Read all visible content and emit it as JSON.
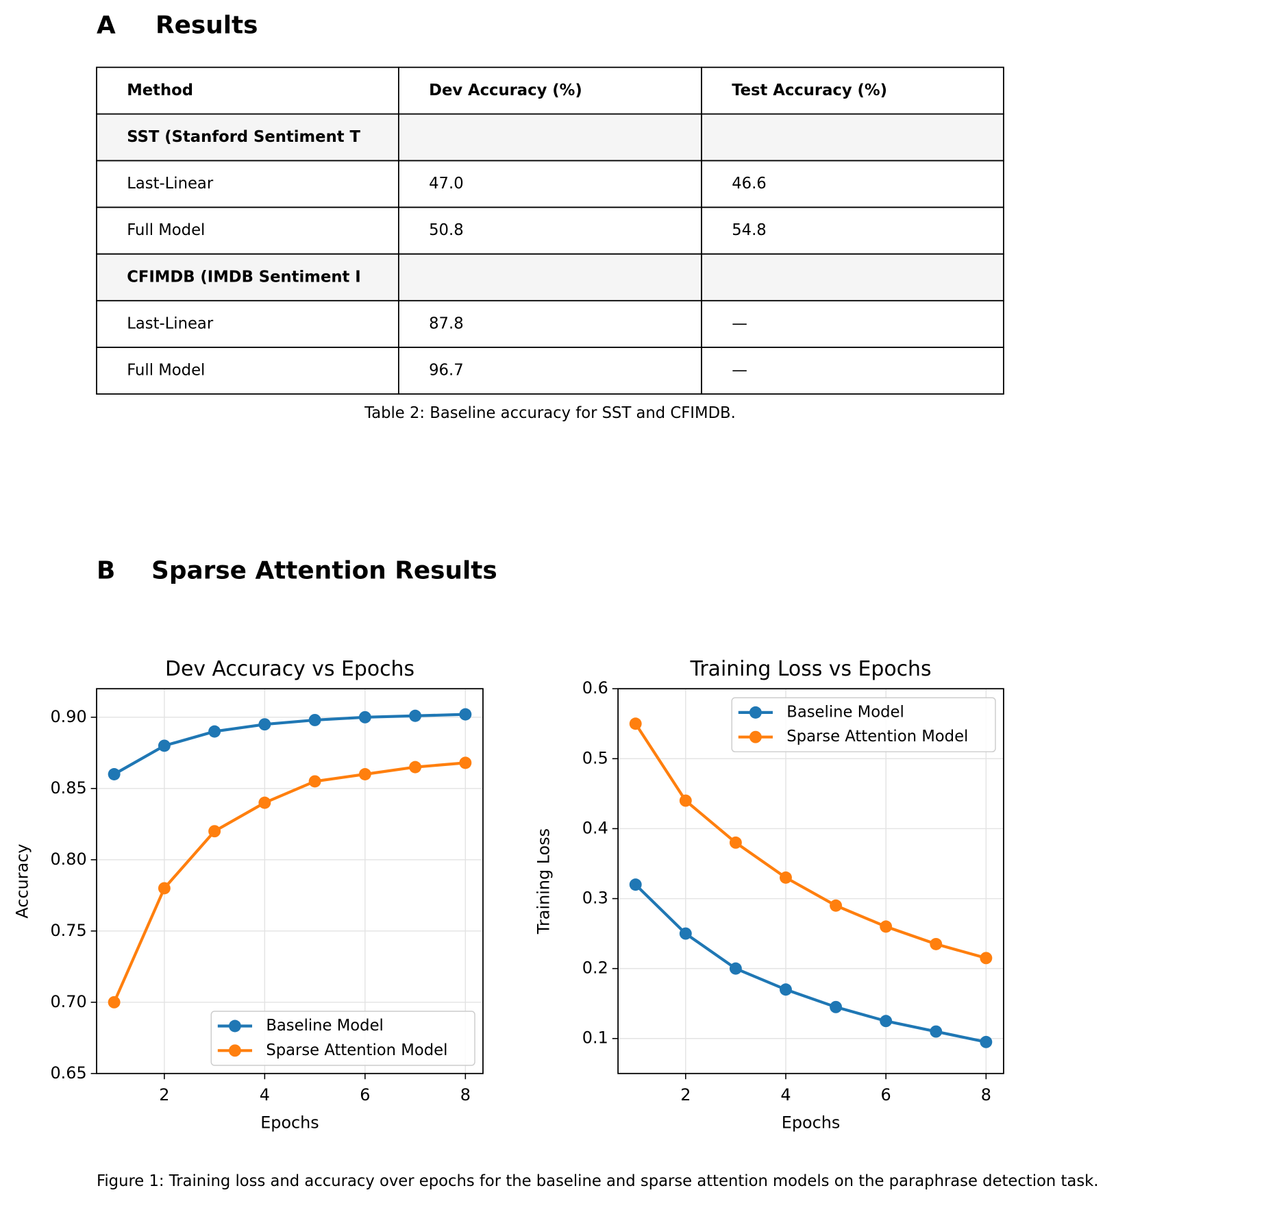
{
  "section_a": {
    "label": "A",
    "title": "Results"
  },
  "table": {
    "header": [
      "Method",
      "Dev Accuracy (%)",
      "Test Accuracy (%)"
    ],
    "rows": [
      {
        "group": "SST (Stanford Sentiment T"
      },
      [
        "Last-Linear",
        "47.0",
        "46.6"
      ],
      [
        "Full Model",
        "50.8",
        "54.8"
      ],
      {
        "group": "CFIMDB (IMDB Sentiment I"
      },
      [
        "Last-Linear",
        "87.8",
        "—"
      ],
      [
        "Full Model",
        "96.7",
        "—"
      ]
    ],
    "caption": "Table 2: Baseline accuracy for SST and CFIMDB."
  },
  "section_b": {
    "label": "B",
    "title": "Sparse Attention Results"
  },
  "chart_data": [
    {
      "type": "line",
      "title": "Dev Accuracy vs Epochs",
      "xlabel": "Epochs",
      "ylabel": "Accuracy",
      "x": [
        1,
        2,
        3,
        4,
        5,
        6,
        7,
        8
      ],
      "series": [
        {
          "name": "Baseline Model",
          "color": "#1f77b4",
          "values": [
            0.86,
            0.88,
            0.89,
            0.895,
            0.898,
            0.9,
            0.901,
            0.902
          ]
        },
        {
          "name": "Sparse Attention Model",
          "color": "#ff7f0e",
          "values": [
            0.7,
            0.78,
            0.82,
            0.84,
            0.855,
            0.86,
            0.865,
            0.868
          ]
        }
      ],
      "xlim": [
        0.65,
        8.35
      ],
      "xticks": [
        2,
        4,
        6,
        8
      ],
      "ylim": [
        0.65,
        0.92
      ],
      "yticks": [
        0.65,
        {
          "value": 0.7,
          "label": "0.70"
        },
        0.75,
        {
          "value": 0.8,
          "label": "0.80"
        },
        0.85,
        {
          "value": 0.9,
          "label": "0.90"
        }
      ],
      "grid": true,
      "legend": "lower right"
    },
    {
      "type": "line",
      "title": "Training Loss vs Epochs",
      "xlabel": "Epochs",
      "ylabel": "Training Loss",
      "x": [
        1,
        2,
        3,
        4,
        5,
        6,
        7,
        8
      ],
      "series": [
        {
          "name": "Baseline Model",
          "color": "#1f77b4",
          "values": [
            0.32,
            0.25,
            0.2,
            0.17,
            0.145,
            0.125,
            0.11,
            0.095
          ]
        },
        {
          "name": "Sparse Attention Model",
          "color": "#ff7f0e",
          "values": [
            0.55,
            0.44,
            0.38,
            0.33,
            0.29,
            0.26,
            0.235,
            0.215
          ]
        }
      ],
      "xlim": [
        0.65,
        8.35
      ],
      "xticks": [
        2,
        4,
        6,
        8
      ],
      "ylim": [
        0.05,
        0.6
      ],
      "yticks": [
        0.1,
        0.2,
        0.3,
        0.4,
        0.5,
        0.6
      ],
      "grid": true,
      "legend": "upper right"
    }
  ],
  "figure_caption": "Figure 1: Training loss and accuracy over epochs for the baseline and sparse attention models on the paraphrase detection task."
}
